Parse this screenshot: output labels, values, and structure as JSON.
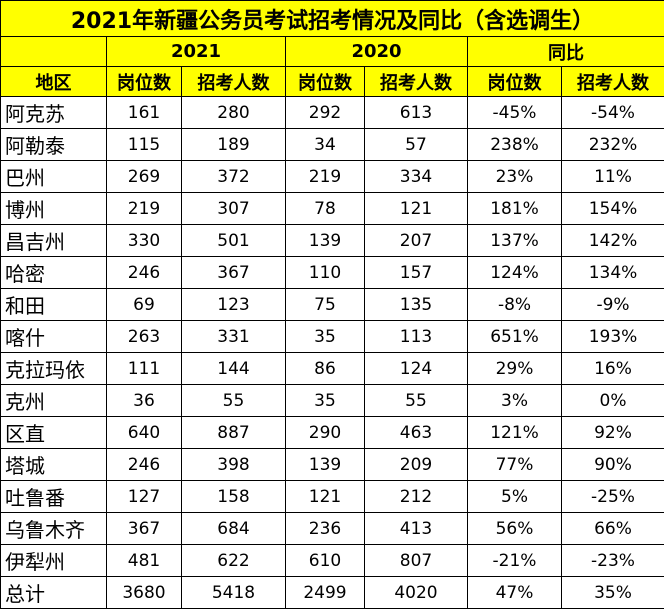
{
  "title": "2021年新疆公务员考试招考情况及同比（含选调生）",
  "header": {
    "groups": [
      "2021",
      "2020",
      "同比"
    ],
    "columns": [
      "地区",
      "岗位数",
      "招考人数",
      "岗位数",
      "招考人数",
      "岗位数",
      "招考人数"
    ]
  },
  "table": {
    "rows": [
      [
        "阿克苏",
        "161",
        "280",
        "292",
        "613",
        "-45%",
        "-54%"
      ],
      [
        "阿勒泰",
        "115",
        "189",
        "34",
        "57",
        "238%",
        "232%"
      ],
      [
        "巴州",
        "269",
        "372",
        "219",
        "334",
        "23%",
        "11%"
      ],
      [
        "博州",
        "219",
        "307",
        "78",
        "121",
        "181%",
        "154%"
      ],
      [
        "昌吉州",
        "330",
        "501",
        "139",
        "207",
        "137%",
        "142%"
      ],
      [
        "哈密",
        "246",
        "367",
        "110",
        "157",
        "124%",
        "134%"
      ],
      [
        "和田",
        "69",
        "123",
        "75",
        "135",
        "-8%",
        "-9%"
      ],
      [
        "喀什",
        "263",
        "331",
        "35",
        "113",
        "651%",
        "193%"
      ],
      [
        "克拉玛依",
        "111",
        "144",
        "86",
        "124",
        "29%",
        "16%"
      ],
      [
        "克州",
        "36",
        "55",
        "35",
        "55",
        "3%",
        "0%"
      ],
      [
        "区直",
        "640",
        "887",
        "290",
        "463",
        "121%",
        "92%"
      ],
      [
        "塔城",
        "246",
        "398",
        "139",
        "209",
        "77%",
        "90%"
      ],
      [
        "吐鲁番",
        "127",
        "158",
        "121",
        "212",
        "5%",
        "-25%"
      ],
      [
        "乌鲁木齐",
        "367",
        "684",
        "236",
        "413",
        "56%",
        "66%"
      ],
      [
        "伊犁州",
        "481",
        "622",
        "610",
        "807",
        "-21%",
        "-23%"
      ],
      [
        "总计",
        "3680",
        "5418",
        "2499",
        "4020",
        "47%",
        "35%"
      ]
    ]
  }
}
